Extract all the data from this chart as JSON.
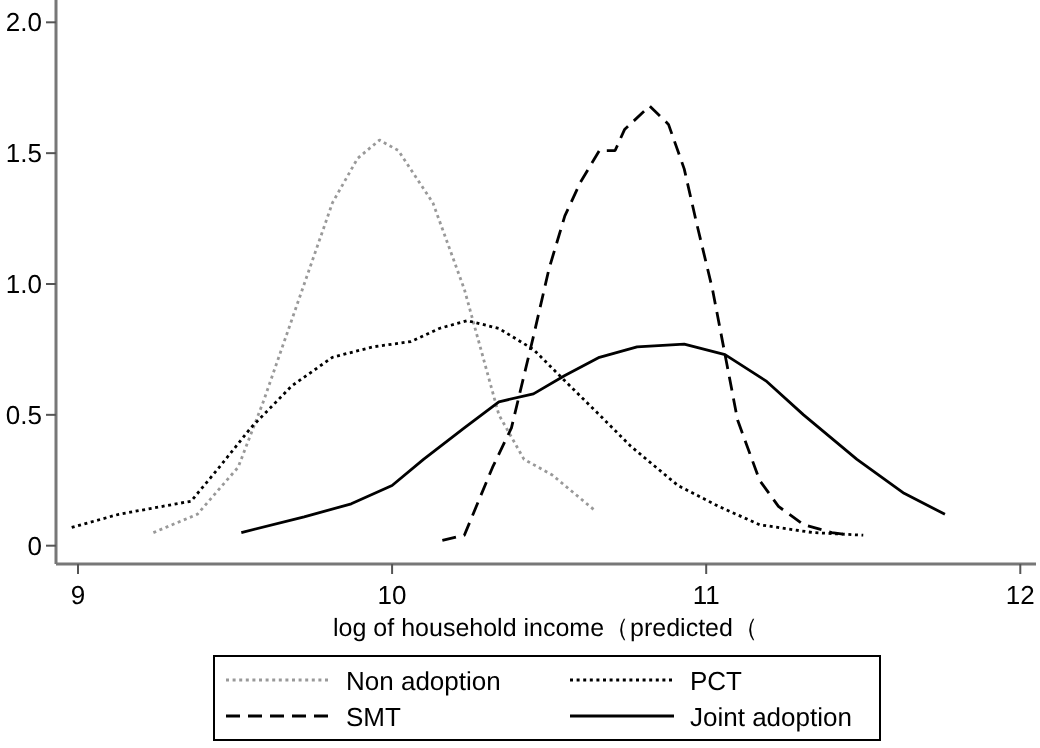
{
  "chart_data": {
    "type": "line",
    "xlabel": "log of household income（predicted（",
    "xlim": [
      8.93,
      12.05
    ],
    "ylim": [
      -0.07,
      2.07
    ],
    "xticks": [
      9,
      10,
      11,
      12
    ],
    "yticks": [
      0,
      0.5,
      {
        "value": 1,
        "label": "1.0"
      },
      1.5,
      {
        "value": 2,
        "label": "2.0"
      }
    ],
    "grid": false,
    "legend": "bottom",
    "marker": "none",
    "series": [
      {
        "name": "Non adoption",
        "color": "#999999",
        "line_style": "dotted",
        "x": [
          9.24,
          9.38,
          9.51,
          9.59,
          9.7,
          9.81,
          9.89,
          9.96,
          10.02,
          10.13,
          10.23,
          10.34,
          10.42,
          10.51,
          10.65
        ],
        "values": [
          0.05,
          0.12,
          0.3,
          0.55,
          0.93,
          1.31,
          1.48,
          1.55,
          1.51,
          1.31,
          0.98,
          0.5,
          0.33,
          0.27,
          0.13
        ]
      },
      {
        "name": "PCT",
        "color": "#000000",
        "line_style": "dotted",
        "x": [
          8.98,
          9.13,
          9.36,
          9.45,
          9.55,
          9.68,
          9.81,
          9.94,
          10.06,
          10.15,
          10.24,
          10.34,
          10.45,
          10.55,
          10.66,
          10.76,
          10.91,
          11.04,
          11.17,
          11.34,
          11.5
        ],
        "values": [
          0.07,
          0.12,
          0.17,
          0.3,
          0.45,
          0.61,
          0.72,
          0.76,
          0.78,
          0.83,
          0.86,
          0.83,
          0.75,
          0.63,
          0.5,
          0.38,
          0.23,
          0.15,
          0.08,
          0.05,
          0.04
        ]
      },
      {
        "name": "SMT",
        "color": "#000000",
        "line_style": "dashed",
        "x": [
          10.16,
          10.23,
          10.32,
          10.38,
          10.45,
          10.5,
          10.55,
          10.6,
          10.66,
          10.71,
          10.74,
          10.82,
          10.88,
          10.93,
          10.97,
          11.02,
          11.06,
          11.1,
          11.17,
          11.23,
          11.31,
          11.4,
          11.46
        ],
        "values": [
          0.02,
          0.04,
          0.3,
          0.45,
          0.8,
          1.06,
          1.26,
          1.39,
          1.51,
          1.51,
          1.59,
          1.68,
          1.61,
          1.44,
          1.23,
          0.98,
          0.73,
          0.48,
          0.25,
          0.15,
          0.08,
          0.05,
          0.04
        ]
      },
      {
        "name": "Joint adoption",
        "color": "#000000",
        "line_style": "solid",
        "x": [
          9.52,
          9.72,
          9.87,
          10.0,
          10.1,
          10.23,
          10.34,
          10.45,
          10.55,
          10.66,
          10.78,
          10.93,
          11.06,
          11.19,
          11.31,
          11.48,
          11.63,
          11.76
        ],
        "values": [
          0.05,
          0.11,
          0.16,
          0.23,
          0.33,
          0.45,
          0.55,
          0.58,
          0.65,
          0.72,
          0.76,
          0.77,
          0.73,
          0.63,
          0.5,
          0.33,
          0.2,
          0.12
        ]
      }
    ]
  }
}
